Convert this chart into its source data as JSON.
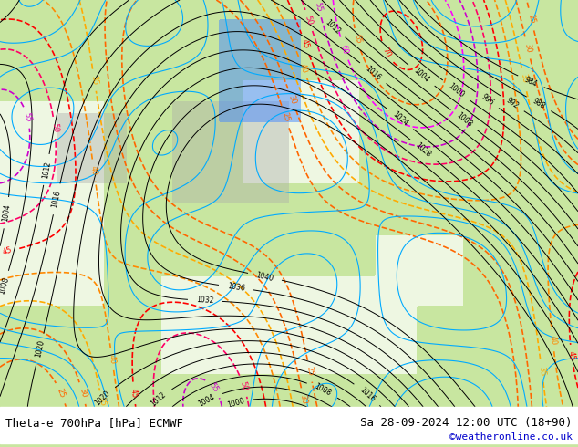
{
  "title_left": "Theta-e 700hPa [hPa] ECMWF",
  "title_right": "Sa 28-09-2024 12:00 UTC (18+90)",
  "copyright": "©weatheronline.co.uk",
  "bg_color": "#c8e6a0",
  "bg_color_sea": "#ffffff",
  "text_color_left": "#000000",
  "text_color_right": "#000000",
  "text_color_copy": "#0000cc",
  "figsize": [
    6.34,
    4.9
  ],
  "dpi": 100
}
